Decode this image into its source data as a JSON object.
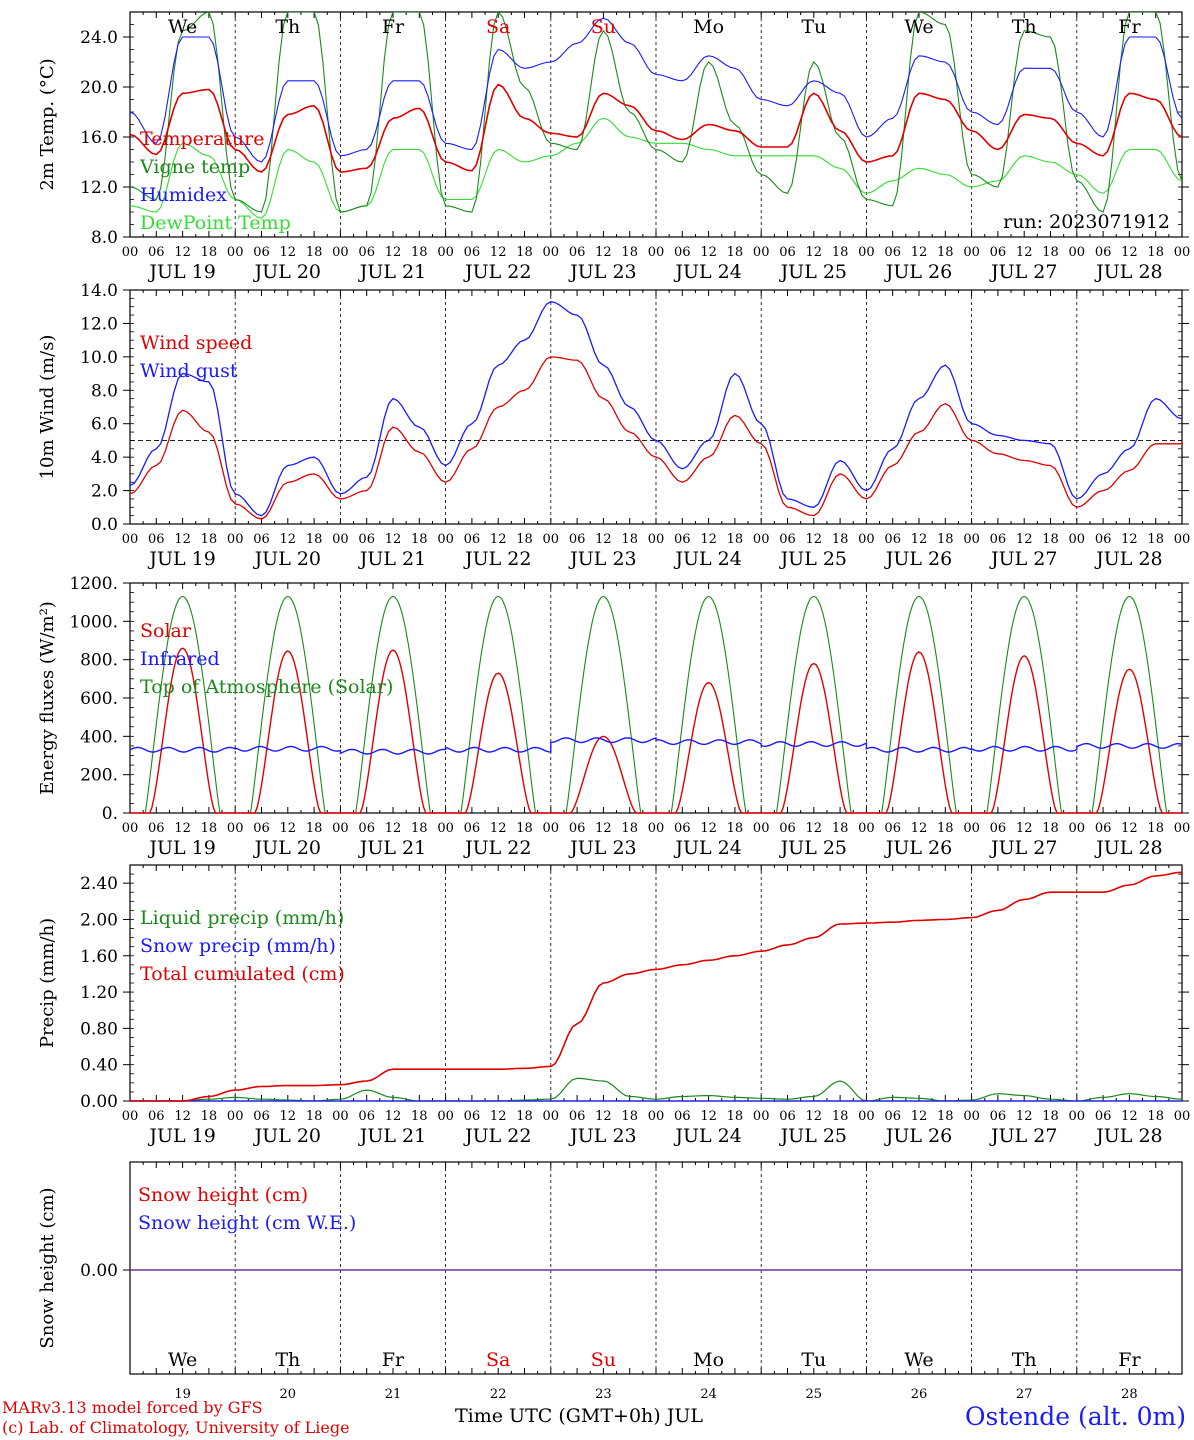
{
  "meta": {
    "run_label": "run: 2023071912",
    "model_credit": "MARv3.13 model forced by GFS",
    "lab_credit": "(c) Lab. of Climatology, University of Liege",
    "time_axis_label": "Time UTC (GMT+0h) JUL",
    "station": "Ostende (alt. 0m)"
  },
  "days": [
    {
      "dow": "We",
      "date": "JUL 19",
      "num": "19",
      "weekend": false
    },
    {
      "dow": "Th",
      "date": "JUL 20",
      "num": "20",
      "weekend": false
    },
    {
      "dow": "Fr",
      "date": "JUL 21",
      "num": "21",
      "weekend": false
    },
    {
      "dow": "Sa",
      "date": "JUL 22",
      "num": "22",
      "weekend": true
    },
    {
      "dow": "Su",
      "date": "JUL 23",
      "num": "23",
      "weekend": true
    },
    {
      "dow": "Mo",
      "date": "JUL 24",
      "num": "24",
      "weekend": false
    },
    {
      "dow": "Tu",
      "date": "JUL 25",
      "num": "25",
      "weekend": false
    },
    {
      "dow": "We",
      "date": "JUL 26",
      "num": "26",
      "weekend": false
    },
    {
      "dow": "Th",
      "date": "JUL 27",
      "num": "27",
      "weekend": false
    },
    {
      "dow": "Fr",
      "date": "JUL 28",
      "num": "28",
      "weekend": false
    }
  ],
  "hour_ticks": [
    "00",
    "06",
    "12",
    "18"
  ],
  "colors": {
    "red": "#e00000",
    "green": "#1a8a1a",
    "blue": "#1a1aff",
    "lightgreen": "#33dd33",
    "purple": "#7030a0",
    "weekend": "#e00000"
  },
  "chart_data": [
    {
      "id": "temperature",
      "type": "line",
      "ylabel": "2m Temp. (°C)",
      "ylim": [
        8,
        26
      ],
      "yticks": [
        "8.0",
        "12.0",
        "16.0",
        "20.0",
        "24.0"
      ],
      "ytick_values": [
        8,
        12,
        16,
        20,
        24
      ],
      "x_unit": "hours since 2023-07-19 00 UTC (each point every 6 h)",
      "legend": [
        {
          "label": "Temperature",
          "color": "red"
        },
        {
          "label": "Vigne temp",
          "color": "green"
        },
        {
          "label": "Humidex",
          "color": "blue"
        },
        {
          "label": "DewPoint Temp",
          "color": "lightgreen"
        }
      ],
      "series": [
        {
          "name": "Temperature",
          "color": "red",
          "x_step_h": 6,
          "values": [
            16.2,
            14.6,
            19.5,
            19.8,
            15.0,
            13.2,
            17.8,
            18.5,
            13.2,
            13.5,
            17.5,
            18.3,
            14.0,
            13.3,
            20.2,
            17.5,
            16.3,
            16.0,
            19.5,
            18.5,
            16.5,
            15.8,
            17.0,
            16.5,
            15.2,
            15.2,
            19.5,
            16.5,
            14.0,
            14.5,
            19.5,
            19.0,
            16.5,
            15.0,
            17.8,
            17.5,
            15.5,
            14.5,
            19.5,
            19.0,
            16.0
          ]
        },
        {
          "name": "Vigne temp",
          "color": "green",
          "x_step_h": 6,
          "values": [
            12.0,
            11.0,
            24.5,
            26.0,
            11.0,
            10.0,
            26.0,
            26.0,
            10.0,
            10.5,
            26.0,
            26.0,
            10.5,
            10.0,
            26.0,
            20.0,
            15.5,
            15.0,
            24.5,
            18.0,
            15.0,
            14.0,
            22.0,
            17.0,
            13.0,
            11.5,
            22.0,
            16.0,
            11.0,
            10.5,
            26.0,
            25.0,
            13.0,
            12.0,
            24.5,
            24.0,
            12.5,
            10.0,
            26.0,
            26.0,
            12.5
          ]
        },
        {
          "name": "Humidex",
          "color": "blue",
          "x_step_h": 6,
          "values": [
            18.0,
            15.5,
            24.0,
            24.0,
            16.0,
            14.0,
            20.5,
            20.5,
            14.5,
            15.0,
            20.5,
            20.5,
            15.5,
            15.0,
            23.0,
            21.5,
            22.0,
            23.5,
            25.5,
            23.5,
            21.0,
            20.5,
            22.5,
            21.5,
            19.0,
            18.5,
            20.5,
            19.5,
            16.0,
            17.5,
            22.5,
            22.0,
            18.0,
            17.0,
            21.5,
            21.5,
            18.0,
            16.0,
            24.0,
            24.0,
            17.5
          ]
        },
        {
          "name": "DewPoint Temp",
          "color": "lightgreen",
          "x_step_h": 6,
          "values": [
            10.5,
            10.0,
            15.5,
            14.5,
            11.0,
            9.5,
            15.0,
            14.0,
            10.0,
            10.5,
            15.0,
            15.0,
            11.0,
            11.0,
            15.0,
            14.0,
            14.5,
            15.5,
            17.5,
            16.0,
            15.5,
            15.5,
            15.0,
            14.5,
            14.5,
            14.5,
            14.5,
            13.5,
            11.5,
            12.5,
            13.5,
            13.0,
            12.0,
            12.5,
            14.5,
            14.0,
            13.0,
            11.5,
            15.0,
            15.0,
            12.5
          ]
        }
      ]
    },
    {
      "id": "wind",
      "type": "line",
      "ylabel": "10m Wind (m/s)",
      "ylim": [
        0,
        14
      ],
      "yticks": [
        "0.0",
        "2.0",
        "4.0",
        "6.0",
        "8.0",
        "10.0",
        "12.0",
        "14.0"
      ],
      "ytick_values": [
        0,
        2,
        4,
        6,
        8,
        10,
        12,
        14
      ],
      "reference_line": 5,
      "legend": [
        {
          "label": "Wind speed",
          "color": "red"
        },
        {
          "label": "Wind gust",
          "color": "blue"
        }
      ],
      "series": [
        {
          "name": "Wind speed",
          "color": "red",
          "x_step_h": 6,
          "values": [
            1.8,
            3.5,
            6.8,
            5.5,
            1.2,
            0.3,
            2.5,
            3.0,
            1.5,
            2.0,
            5.8,
            4.3,
            2.5,
            4.5,
            7.0,
            8.0,
            10.0,
            9.8,
            7.5,
            5.5,
            4.0,
            2.5,
            4.0,
            6.5,
            4.8,
            1.0,
            0.5,
            3.0,
            1.5,
            3.5,
            5.5,
            7.2,
            5.0,
            4.2,
            3.8,
            3.5,
            1.0,
            2.0,
            3.2,
            4.8,
            4.8
          ]
        },
        {
          "name": "Wind gust",
          "color": "blue",
          "x_step_h": 6,
          "values": [
            2.3,
            4.5,
            9.0,
            8.5,
            1.8,
            0.5,
            3.5,
            4.0,
            1.8,
            2.8,
            7.5,
            5.8,
            3.5,
            6.0,
            9.5,
            11.0,
            13.3,
            12.5,
            9.5,
            7.0,
            5.0,
            3.3,
            5.0,
            9.0,
            6.0,
            1.5,
            1.0,
            3.8,
            2.0,
            4.5,
            7.5,
            9.5,
            6.0,
            5.3,
            5.0,
            4.8,
            1.5,
            3.0,
            4.5,
            7.5,
            6.3
          ]
        }
      ]
    },
    {
      "id": "energy",
      "type": "line",
      "ylabel": "Energy fluxes (W/m²)",
      "ylim": [
        0,
        1200
      ],
      "yticks": [
        "0.",
        "200.",
        "400.",
        "600.",
        "800.",
        "1000.",
        "1200."
      ],
      "ytick_values": [
        0,
        200,
        400,
        600,
        800,
        1000,
        1200
      ],
      "legend": [
        {
          "label": "Solar",
          "color": "red"
        },
        {
          "label": "Infrared",
          "color": "blue"
        },
        {
          "label": "Top of Atmosphere (Solar)",
          "color": "green"
        }
      ],
      "toa_peak": 1130,
      "solar_daily_peaks": [
        860,
        845,
        850,
        730,
        400,
        680,
        780,
        840,
        820,
        750
      ],
      "infrared_daily": [
        330,
        335,
        320,
        330,
        380,
        370,
        360,
        330,
        335,
        350
      ]
    },
    {
      "id": "precip",
      "type": "line",
      "ylabel": "Precip (mm/h)",
      "ylim": [
        0,
        2.6
      ],
      "yticks": [
        "0.00",
        "0.40",
        "0.80",
        "1.20",
        "1.60",
        "2.00",
        "2.40"
      ],
      "ytick_values": [
        0,
        0.4,
        0.8,
        1.2,
        1.6,
        2.0,
        2.4
      ],
      "legend": [
        {
          "label": "Liquid precip (mm/h)",
          "color": "green"
        },
        {
          "label": "Snow precip (mm/h)",
          "color": "blue"
        },
        {
          "label": "Total cumulated (cm)",
          "color": "red"
        }
      ],
      "series": [
        {
          "name": "Total cumulated (cm)",
          "color": "red",
          "x_step_h": 6,
          "values": [
            0.0,
            0.0,
            0.0,
            0.05,
            0.12,
            0.16,
            0.17,
            0.17,
            0.18,
            0.22,
            0.35,
            0.35,
            0.35,
            0.35,
            0.35,
            0.36,
            0.38,
            0.85,
            1.3,
            1.4,
            1.45,
            1.5,
            1.55,
            1.6,
            1.65,
            1.72,
            1.8,
            1.95,
            1.96,
            1.97,
            1.99,
            2.0,
            2.02,
            2.1,
            2.22,
            2.3,
            2.3,
            2.3,
            2.38,
            2.48,
            2.52
          ]
        },
        {
          "name": "Liquid precip (mm/h)",
          "color": "green",
          "x_step_h": 6,
          "values": [
            0,
            0,
            0,
            0.02,
            0.04,
            0.02,
            0.01,
            0.0,
            0.02,
            0.12,
            0.04,
            0.0,
            0,
            0,
            0,
            0.01,
            0.02,
            0.25,
            0.22,
            0.05,
            0.02,
            0.05,
            0.06,
            0.04,
            0.03,
            0.02,
            0.05,
            0.22,
            0.0,
            0.04,
            0.03,
            0.0,
            0.01,
            0.08,
            0.06,
            0.02,
            0.0,
            0.04,
            0.08,
            0.05,
            0.02
          ]
        }
      ]
    },
    {
      "id": "snow",
      "type": "line",
      "ylabel": "Snow height (cm)",
      "yticks": [
        "0.00"
      ],
      "legend": [
        {
          "label": "Snow height (cm)",
          "color": "red"
        },
        {
          "label": "Snow height (cm W.E.)",
          "color": "blue"
        }
      ],
      "constant_value": 0.0
    }
  ]
}
